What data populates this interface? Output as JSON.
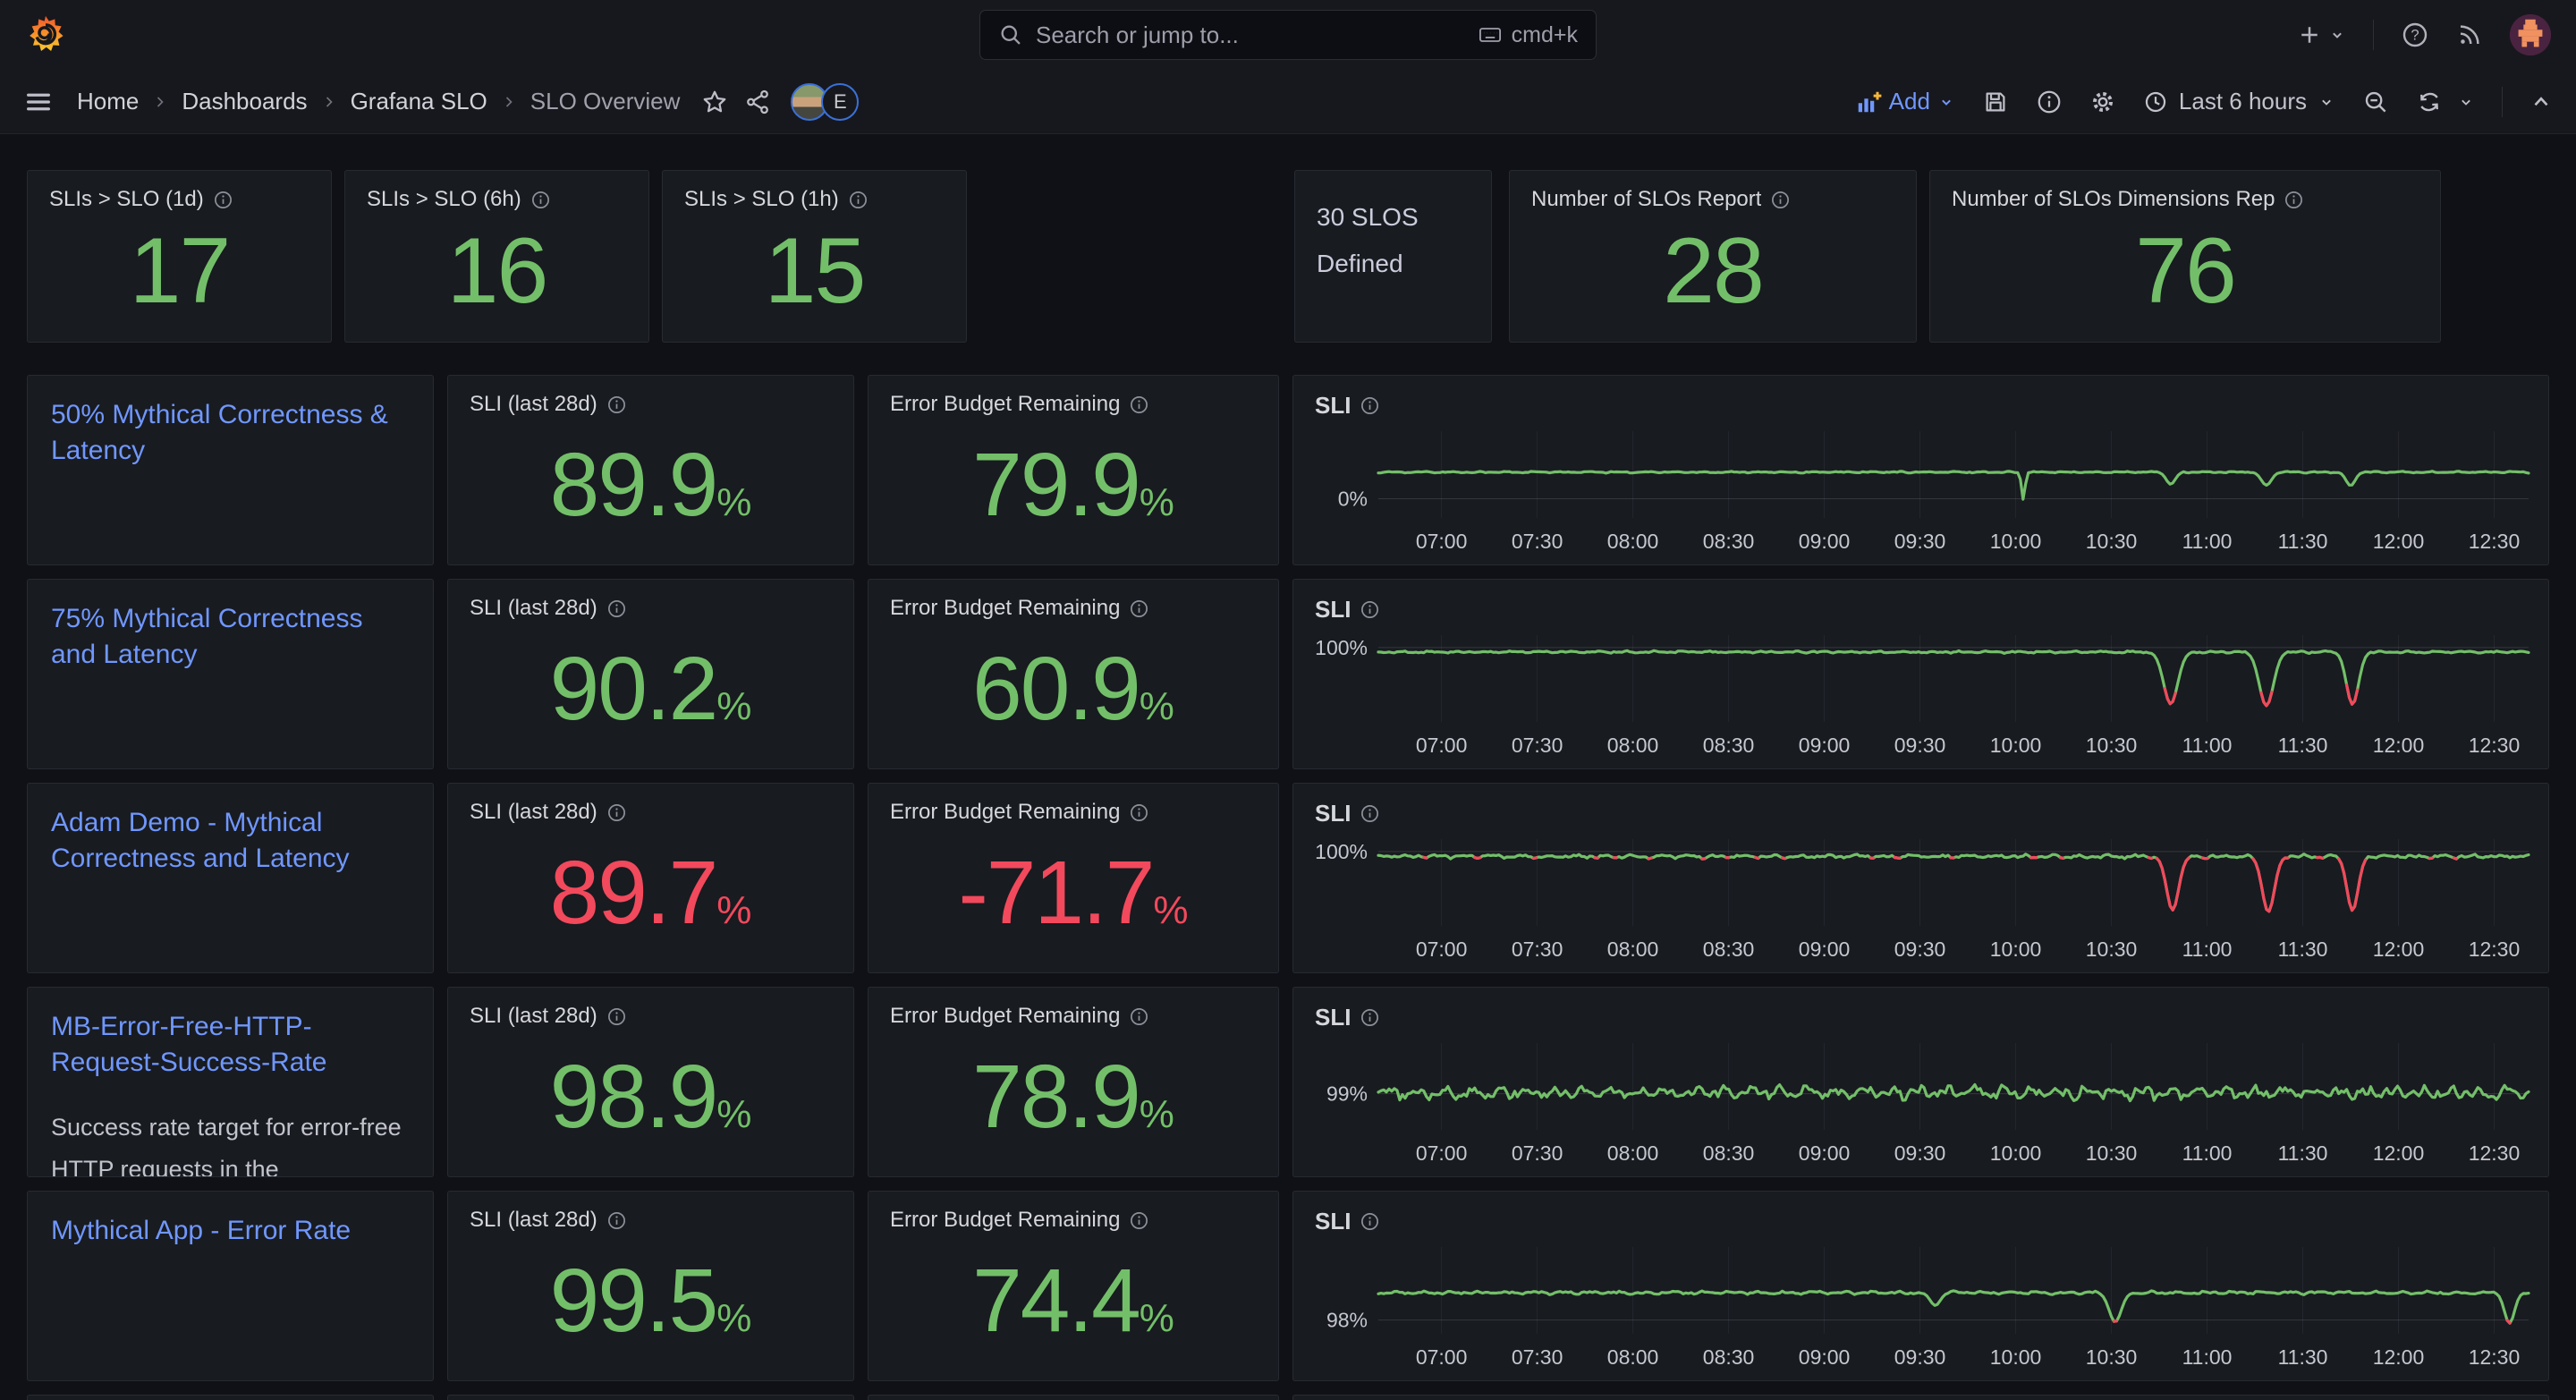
{
  "topnav": {
    "search_placeholder": "Search or jump to...",
    "shortcut": "cmd+k"
  },
  "toolbar": {
    "breadcrumb": [
      "Home",
      "Dashboards",
      "Grafana SLO",
      "SLO Overview"
    ],
    "avatar_badge": "E",
    "add_label": "Add",
    "time_range": "Last 6 hours"
  },
  "units": {
    "percent": "%"
  },
  "colors": {
    "green": "#73BF69",
    "red": "#F2495C",
    "blue": "#7097ff"
  },
  "labels": {
    "sli_panel": "SLI (last 28d)",
    "ebr_panel": "Error Budget Remaining"
  },
  "stats": [
    {
      "title": "SLIs > SLO (1d)",
      "value": "17"
    },
    {
      "title": "SLIs > SLO (6h)",
      "value": "16"
    },
    {
      "title": "SLIs > SLO (1h)",
      "value": "15"
    }
  ],
  "defined_text": "30 SLOS Defined",
  "stats2": [
    {
      "title": "Number of SLOs Report",
      "value": "28"
    },
    {
      "title": "Number of SLOs Dimensions Rep",
      "value": "76"
    }
  ],
  "slo_rows": [
    {
      "name": "50% Mythical Correctness & Latency",
      "desc": "",
      "sli": "89.9",
      "sli_color": "green",
      "ebr": "79.9",
      "ebr_color": "green"
    },
    {
      "name": "75% Mythical Correctness and Latency",
      "desc": "",
      "sli": "90.2",
      "sli_color": "green",
      "ebr": "60.9",
      "ebr_color": "green"
    },
    {
      "name": "Adam Demo - Mythical Correctness and Latency",
      "desc": "",
      "sli": "89.7",
      "sli_color": "red",
      "ebr": "-71.7",
      "ebr_color": "red"
    },
    {
      "name": "MB-Error-Free-HTTP-Request-Success-Rate",
      "desc": "Success rate target for error-free HTTP requests in the",
      "sli": "98.9",
      "sli_color": "green",
      "ebr": "78.9",
      "ebr_color": "green"
    },
    {
      "name": "Mythical App - Error Rate",
      "desc": "",
      "sli": "99.5",
      "sli_color": "green",
      "ebr": "74.4",
      "ebr_color": "green"
    }
  ],
  "chart_data": [
    {
      "type": "line",
      "title": "SLI",
      "legend": "none",
      "grid": true,
      "xticks": [
        "07:00",
        "07:30",
        "08:00",
        "08:30",
        "09:00",
        "09:30",
        "10:00",
        "10:30",
        "11:00",
        "11:30",
        "12:00",
        "12:30"
      ],
      "x_domain": [
        6.67,
        12.68
      ],
      "y_domain": [
        -40,
        140
      ],
      "ytick": {
        "label": "0%",
        "value": 0
      },
      "baseline": 55,
      "noise": 1.6,
      "line_color": "#73BF69",
      "red_color": "#F2495C",
      "red_threshold": 20,
      "dips": [
        {
          "t": 10.04,
          "v": -2,
          "w": 0.018
        },
        {
          "t": 10.81,
          "v": 30,
          "w": 0.045
        },
        {
          "t": 11.31,
          "v": 28,
          "w": 0.05
        },
        {
          "t": 11.75,
          "v": 27,
          "w": 0.045
        }
      ]
    },
    {
      "type": "line",
      "title": "SLI",
      "legend": "none",
      "grid": true,
      "xticks": [
        "07:00",
        "07:30",
        "08:00",
        "08:30",
        "09:00",
        "09:30",
        "10:00",
        "10:30",
        "11:00",
        "11:30",
        "12:00",
        "12:30"
      ],
      "x_domain": [
        6.67,
        12.68
      ],
      "y_domain": [
        96.7,
        100.55
      ],
      "ytick": {
        "label": "100%",
        "value": 100
      },
      "baseline": 99.8,
      "noise": 0.05,
      "line_color": "#73BF69",
      "red_color": "#F2495C",
      "red_threshold": 98.45,
      "dips": [
        {
          "t": 10.81,
          "v": 97.5,
          "w": 0.07
        },
        {
          "t": 11.31,
          "v": 97.42,
          "w": 0.07
        },
        {
          "t": 11.76,
          "v": 97.48,
          "w": 0.06
        }
      ]
    },
    {
      "type": "line",
      "title": "SLI",
      "legend": "none",
      "grid": true,
      "xticks": [
        "07:00",
        "07:30",
        "08:00",
        "08:30",
        "09:00",
        "09:30",
        "10:00",
        "10:30",
        "11:00",
        "11:30",
        "12:00",
        "12:30"
      ],
      "x_domain": [
        6.67,
        12.68
      ],
      "y_domain": [
        96.7,
        100.55
      ],
      "ytick": {
        "label": "100%",
        "value": 100
      },
      "baseline": 99.78,
      "noise": 0.09,
      "line_color": "#73BF69",
      "red_color": "#F2495C",
      "red_threshold": 99.74,
      "dips": [
        {
          "t": 10.82,
          "v": 97.4,
          "w": 0.06
        },
        {
          "t": 11.32,
          "v": 97.32,
          "w": 0.06
        },
        {
          "t": 11.76,
          "v": 97.38,
          "w": 0.055
        }
      ]
    },
    {
      "type": "line",
      "title": "SLI",
      "legend": "none",
      "grid": true,
      "xticks": [
        "07:00",
        "07:30",
        "08:00",
        "08:30",
        "09:00",
        "09:30",
        "10:00",
        "10:30",
        "11:00",
        "11:30",
        "12:00",
        "12:30"
      ],
      "x_domain": [
        6.67,
        12.68
      ],
      "y_domain": [
        98.25,
        100.05
      ],
      "ytick": {
        "label": "99%",
        "value": 99
      },
      "baseline": 99.02,
      "noise": 0.14,
      "line_color": "#73BF69",
      "red_color": "#F2495C",
      "red_threshold": -999,
      "dips": []
    },
    {
      "type": "line",
      "title": "SLI",
      "legend": "none",
      "grid": true,
      "xticks": [
        "07:00",
        "07:30",
        "08:00",
        "08:30",
        "09:00",
        "09:30",
        "10:00",
        "10:30",
        "11:00",
        "11:30",
        "12:00",
        "12:30"
      ],
      "x_domain": [
        6.67,
        12.68
      ],
      "y_domain": [
        97.7,
        99.6
      ],
      "ytick": {
        "label": "98%",
        "value": 98
      },
      "baseline": 98.6,
      "noise": 0.035,
      "line_color": "#73BF69",
      "red_color": "#F2495C",
      "red_threshold": 98.03,
      "dips": [
        {
          "t": 9.58,
          "v": 98.32,
          "w": 0.05
        },
        {
          "t": 10.52,
          "v": 97.96,
          "w": 0.06
        },
        {
          "t": 12.58,
          "v": 97.93,
          "w": 0.05
        }
      ]
    }
  ]
}
